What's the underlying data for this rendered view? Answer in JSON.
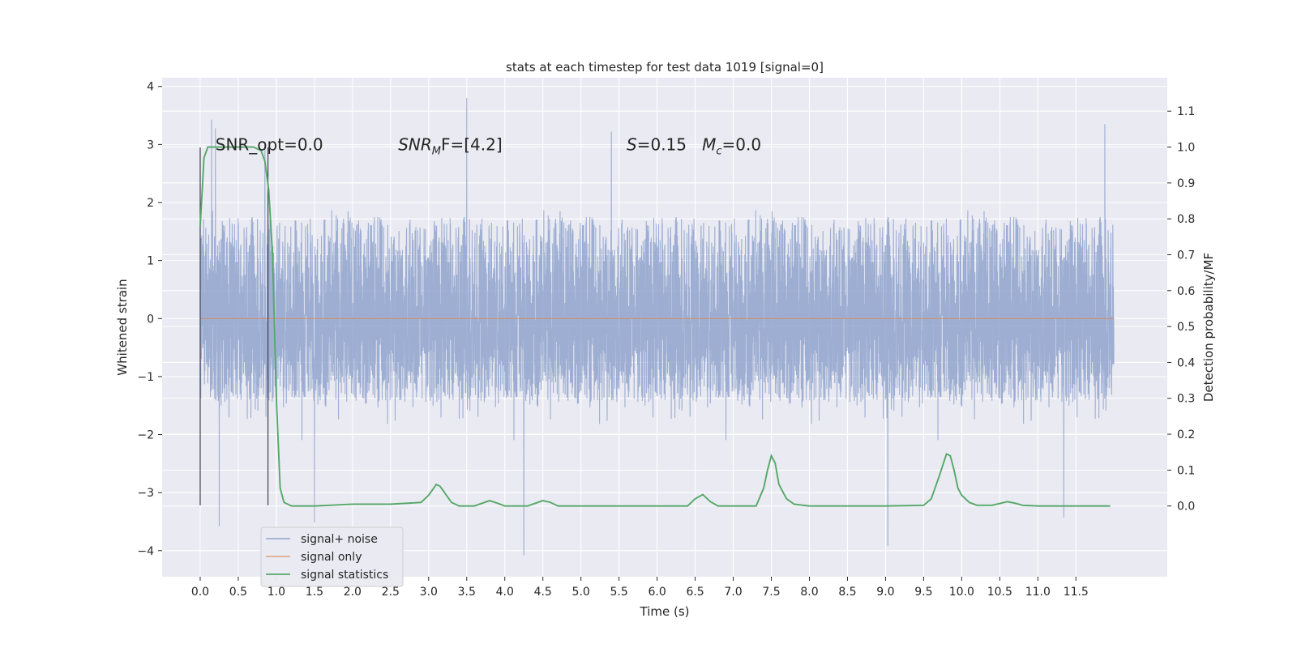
{
  "chart_data": {
    "type": "line",
    "title": "stats at each timestep for test data 1019 [signal=0]",
    "xlabel": "Time (s)",
    "ylabel": "Whitened strain",
    "y2label": "Detection probability/MF",
    "xlim": [
      -0.5,
      12.7
    ],
    "ylim": [
      -4.45,
      4.15
    ],
    "y2lim": [
      -0.197,
      1.193
    ],
    "xticks": [
      0.0,
      0.5,
      1.0,
      1.5,
      2.0,
      2.5,
      3.0,
      3.5,
      4.0,
      4.5,
      5.0,
      5.5,
      6.0,
      6.5,
      7.0,
      7.5,
      8.0,
      8.5,
      9.0,
      9.5,
      10.0,
      10.5,
      11.0,
      11.5
    ],
    "xtick_labels": [
      "0.0",
      "0.5",
      "1.0",
      "1.5",
      "2.0",
      "2.5",
      "3.0",
      "3.5",
      "4.0",
      "4.5",
      "5.0",
      "5.5",
      "6.0",
      "6.5",
      "7.0",
      "7.5",
      "8.0",
      "8.5",
      "9.0",
      "9.5",
      "10.0",
      "10.5",
      "11.0",
      "11.5"
    ],
    "yticks": [
      4,
      3,
      2,
      1,
      0,
      -1,
      -2,
      -3,
      -4
    ],
    "ytick_labels": [
      "4",
      "3",
      "2",
      "1",
      "0",
      "−1",
      "−2",
      "−3",
      "−4"
    ],
    "y2ticks": [
      1.1,
      1.0,
      0.9,
      0.8,
      0.7,
      0.6,
      0.5,
      0.4,
      0.3,
      0.2,
      0.1,
      0.0
    ],
    "y2tick_labels": [
      "1.1",
      "1.0",
      "0.9",
      "0.8",
      "0.7",
      "0.6",
      "0.5",
      "0.4",
      "0.3",
      "0.2",
      "0.1",
      "0.0"
    ],
    "grid": true,
    "legend_position": "lower-left",
    "vlines": [
      0.0,
      0.89
    ],
    "vline_range": [
      -3.22,
      2.95
    ],
    "noise_series": {
      "name": "signal+ noise",
      "color": "#8fa3cc",
      "t_range": [
        0.0,
        12.0
      ],
      "sample_rate": 500,
      "core_band": [
        -1.45,
        1.75
      ],
      "notable_peaks": [
        {
          "t": 0.15,
          "y": 3.43
        },
        {
          "t": 0.2,
          "y": 3.28
        },
        {
          "t": 0.85,
          "y": 3.05
        },
        {
          "t": 3.5,
          "y": 3.8
        },
        {
          "t": 5.4,
          "y": 3.22
        },
        {
          "t": 11.88,
          "y": 3.35
        },
        {
          "t": 0.25,
          "y": -3.58
        },
        {
          "t": 4.25,
          "y": -4.08
        },
        {
          "t": 9.03,
          "y": -3.92
        },
        {
          "t": 11.34,
          "y": -3.43
        },
        {
          "t": 1.5,
          "y": -3.52
        }
      ]
    },
    "signal_series": {
      "name": "signal only",
      "color": "#dd8452",
      "value": 0.0
    },
    "stat_series": {
      "name": "signal statistics",
      "color": "#55a868",
      "axis": "right",
      "x": [
        0.0,
        0.05,
        0.1,
        0.2,
        0.3,
        0.5,
        0.7,
        0.8,
        0.85,
        0.9,
        0.95,
        1.0,
        1.05,
        1.1,
        1.2,
        1.5,
        2.0,
        2.5,
        2.9,
        3.0,
        3.1,
        3.15,
        3.2,
        3.3,
        3.4,
        3.6,
        3.8,
        3.9,
        4.0,
        4.1,
        4.3,
        4.5,
        4.6,
        4.7,
        5.0,
        6.0,
        6.4,
        6.5,
        6.6,
        6.7,
        6.8,
        7.0,
        7.3,
        7.4,
        7.45,
        7.5,
        7.55,
        7.6,
        7.7,
        7.8,
        8.0,
        9.0,
        9.5,
        9.6,
        9.7,
        9.8,
        9.85,
        9.9,
        9.95,
        10.0,
        10.1,
        10.2,
        10.4,
        10.6,
        10.7,
        10.8,
        11.0,
        11.5,
        11.95
      ],
      "values": [
        0.78,
        0.97,
        1.0,
        1.0,
        1.0,
        1.0,
        1.0,
        0.99,
        0.96,
        0.88,
        0.7,
        0.3,
        0.05,
        0.01,
        0.0,
        0.0,
        0.005,
        0.005,
        0.01,
        0.03,
        0.06,
        0.055,
        0.04,
        0.01,
        0.0,
        0.0,
        0.015,
        0.008,
        0.0,
        0.0,
        0.0,
        0.015,
        0.01,
        0.0,
        0.0,
        0.0,
        0.0,
        0.02,
        0.032,
        0.012,
        0.0,
        0.0,
        0.0,
        0.05,
        0.1,
        0.14,
        0.12,
        0.06,
        0.02,
        0.005,
        0.0,
        0.0,
        0.002,
        0.02,
        0.08,
        0.145,
        0.14,
        0.1,
        0.05,
        0.03,
        0.01,
        0.002,
        0.002,
        0.012,
        0.008,
        0.002,
        0.0,
        0.0,
        0.0
      ]
    },
    "annotations": [
      {
        "id": "snr_opt",
        "x": 0.2,
        "y": 2.9,
        "text": "SNR_opt=0.0"
      },
      {
        "id": "snr_mf",
        "x": 2.6,
        "y": 2.9,
        "text_parts": [
          "SNR",
          "M",
          "F=[4.2]"
        ]
      },
      {
        "id": "s_mc",
        "x": 5.6,
        "y": 2.9,
        "text_parts": [
          "S",
          "=0.15   ",
          "M",
          "c",
          "=0.0"
        ]
      }
    ],
    "colors": {
      "background": "#eaeaf2",
      "grid": "#ffffff",
      "text": "#262626",
      "vline": "#404050"
    }
  }
}
